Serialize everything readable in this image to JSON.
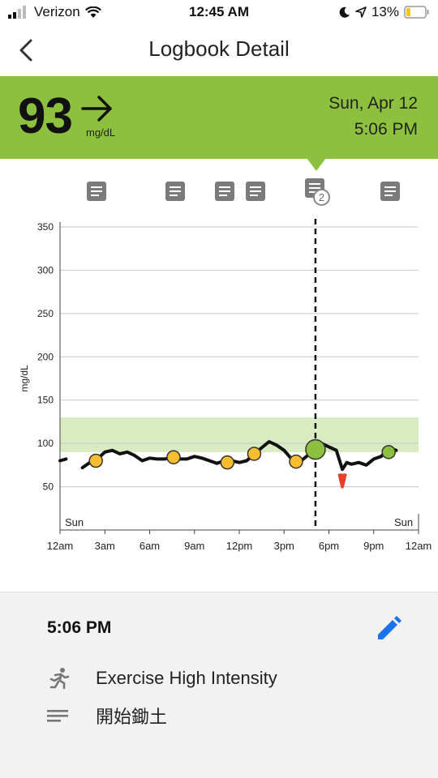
{
  "status_bar": {
    "carrier": "Verizon",
    "time": "12:45 AM",
    "battery": "13%"
  },
  "nav": {
    "title": "Logbook Detail"
  },
  "reading": {
    "value": "93",
    "unit": "mg/dL",
    "trend": "arrow-right-icon",
    "date": "Sun, Apr 12",
    "time": "5:06 PM"
  },
  "colors": {
    "banner": "#8dc03f",
    "target_band": "#d9ebc0",
    "line": "#111111",
    "marker_orange": "#f9bd30",
    "marker_green": "#8dc03f",
    "low_red": "#e8402a",
    "edit_blue": "#1a73e8"
  },
  "note_markers": [
    {
      "label": ""
    },
    {
      "label": ""
    },
    {
      "label": ""
    },
    {
      "label": ""
    },
    {
      "label": "",
      "count": "2"
    },
    {
      "label": ""
    }
  ],
  "chart_data": {
    "type": "line",
    "ylabel": "mg/dL",
    "ylim": [
      0,
      350
    ],
    "y_ticks": [
      50,
      100,
      150,
      200,
      250,
      300,
      350
    ],
    "x_ticks": [
      "12am",
      "3am",
      "6am",
      "9am",
      "12pm",
      "3pm",
      "6pm",
      "9pm",
      "12am"
    ],
    "day_labels": [
      "Sun",
      "Sun"
    ],
    "xlim_hours": [
      0,
      24
    ],
    "target_range": [
      90,
      130
    ],
    "selected_time_hours": 17.1,
    "series": [
      {
        "hours": [
          0.0,
          0.4,
          1.5,
          2.0,
          2.5,
          3.0,
          3.5,
          4.0,
          4.5,
          5.0,
          5.5,
          6.0,
          6.5,
          7.0,
          7.5,
          8.0,
          8.5,
          9.0,
          9.5,
          10.0,
          10.5,
          11.0,
          11.5,
          12.0,
          12.5,
          13.0,
          13.5,
          14.0,
          14.5,
          15.0,
          15.5,
          16.0,
          16.5,
          17.0,
          17.5,
          18.0,
          18.5,
          18.9,
          19.2,
          19.5,
          20.0,
          20.5,
          21.0,
          21.5,
          22.0,
          22.5
        ],
        "values": [
          80,
          82,
          72,
          78,
          82,
          90,
          92,
          88,
          90,
          86,
          80,
          83,
          82,
          82,
          84,
          82,
          82,
          85,
          83,
          80,
          77,
          80,
          80,
          78,
          80,
          88,
          95,
          102,
          98,
          92,
          82,
          78,
          85,
          93,
          100,
          96,
          92,
          70,
          78,
          76,
          78,
          75,
          82,
          85,
          95,
          92
        ]
      }
    ],
    "low_segment": {
      "hours": [
        18.7,
        18.9,
        19.1
      ],
      "values": [
        65,
        50,
        65
      ]
    },
    "markers": [
      {
        "hour": 2.4,
        "value": 80,
        "color": "orange"
      },
      {
        "hour": 7.6,
        "value": 84,
        "color": "orange"
      },
      {
        "hour": 11.2,
        "value": 78,
        "color": "orange"
      },
      {
        "hour": 13.0,
        "value": 88,
        "color": "orange"
      },
      {
        "hour": 15.8,
        "value": 79,
        "color": "orange"
      },
      {
        "hour": 17.1,
        "value": 93,
        "color": "green",
        "large": true
      },
      {
        "hour": 22.0,
        "value": 90,
        "color": "green"
      }
    ]
  },
  "entry": {
    "time": "5:06 PM",
    "items": [
      {
        "icon": "running-icon",
        "label": "Exercise High Intensity"
      },
      {
        "icon": "notes-lines-icon",
        "label": "開始鋤土"
      }
    ]
  }
}
